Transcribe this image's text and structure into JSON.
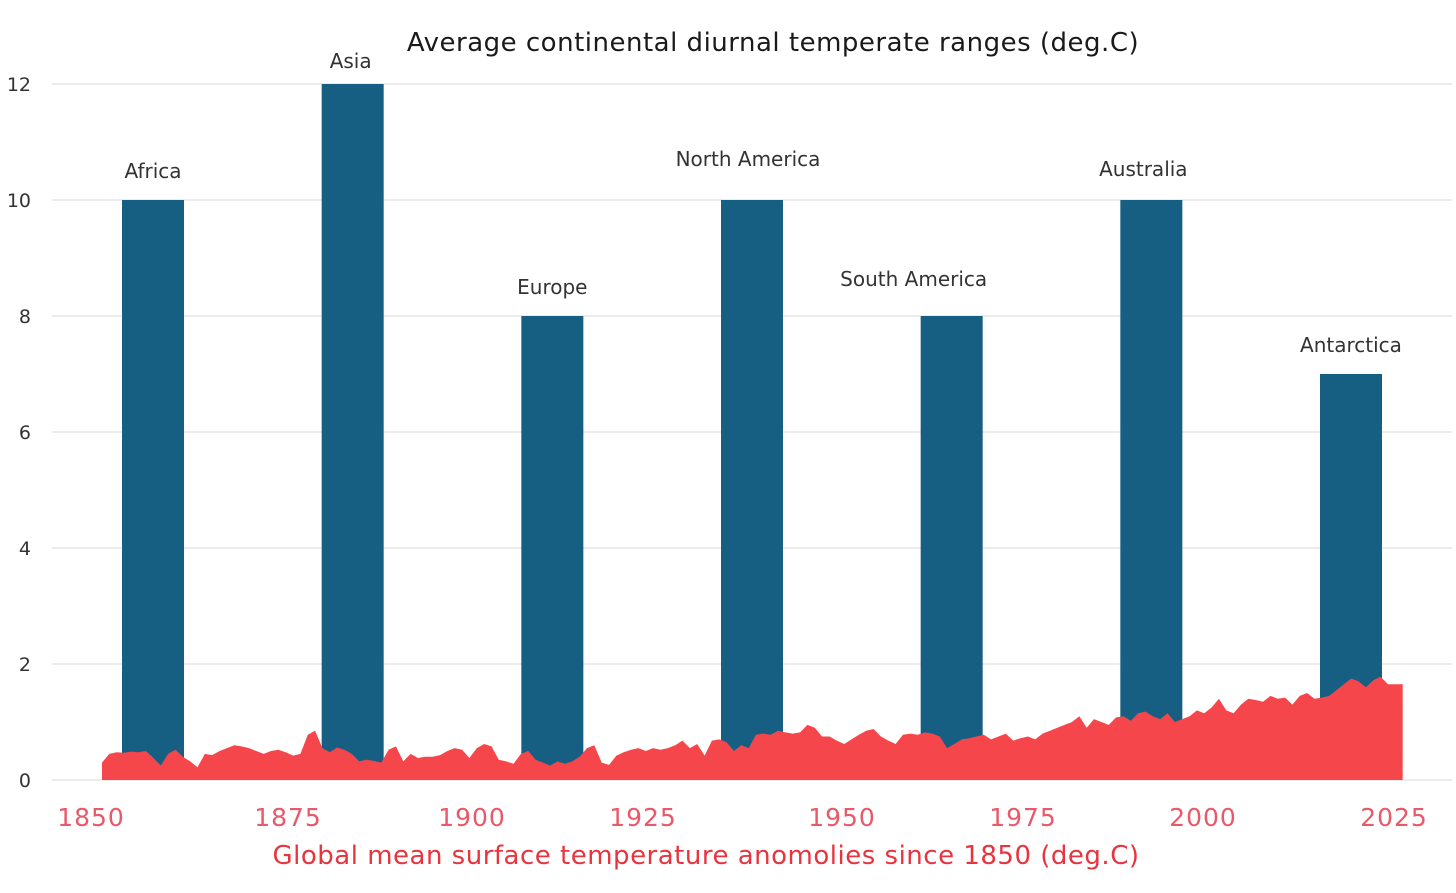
{
  "chart_data": [
    {
      "type": "bar",
      "title": "Average continental diurnal temperate ranges (deg.C)",
      "categories": [
        "Africa",
        "Asia",
        "Europe",
        "North America",
        "South America",
        "Australia",
        "Antarctica"
      ],
      "values": [
        10,
        12,
        8,
        10,
        8,
        10,
        7
      ],
      "ylim": [
        0,
        12
      ],
      "yticks": [
        "0",
        "2",
        "4",
        "6",
        "8",
        "10",
        "12"
      ],
      "ytick_values": [
        0,
        2,
        4,
        6,
        8,
        10,
        12
      ],
      "color": "#175f82",
      "grid": true
    },
    {
      "type": "area",
      "xlabel": "Global mean surface temperature anomolies since 1850 (deg.C)",
      "xlim": [
        1850,
        2028
      ],
      "xticks": [
        "1850",
        "1875",
        "1900",
        "1925",
        "1950",
        "1975",
        "2000",
        "2025"
      ],
      "xtick_values": [
        1850,
        1875,
        1900,
        1925,
        1950,
        1975,
        2000,
        2025
      ],
      "color": "#f5474b",
      "x": [
        1850,
        1851,
        1852,
        1853,
        1854,
        1855,
        1856,
        1857,
        1858,
        1859,
        1860,
        1861,
        1862,
        1863,
        1864,
        1865,
        1866,
        1867,
        1868,
        1869,
        1870,
        1871,
        1872,
        1873,
        1874,
        1875,
        1876,
        1877,
        1878,
        1879,
        1880,
        1881,
        1882,
        1883,
        1884,
        1885,
        1886,
        1887,
        1888,
        1889,
        1890,
        1891,
        1892,
        1893,
        1894,
        1895,
        1896,
        1897,
        1898,
        1899,
        1900,
        1901,
        1902,
        1903,
        1904,
        1905,
        1906,
        1907,
        1908,
        1909,
        1910,
        1911,
        1912,
        1913,
        1914,
        1915,
        1916,
        1917,
        1918,
        1919,
        1920,
        1921,
        1922,
        1923,
        1924,
        1925,
        1926,
        1927,
        1928,
        1929,
        1930,
        1931,
        1932,
        1933,
        1934,
        1935,
        1936,
        1937,
        1938,
        1939,
        1940,
        1941,
        1942,
        1943,
        1944,
        1945,
        1946,
        1947,
        1948,
        1949,
        1950,
        1951,
        1952,
        1953,
        1954,
        1955,
        1956,
        1957,
        1958,
        1959,
        1960,
        1961,
        1962,
        1963,
        1964,
        1965,
        1966,
        1967,
        1968,
        1969,
        1970,
        1971,
        1972,
        1973,
        1974,
        1975,
        1976,
        1977,
        1978,
        1979,
        1980,
        1981,
        1982,
        1983,
        1984,
        1985,
        1986,
        1987,
        1988,
        1989,
        1990,
        1991,
        1992,
        1993,
        1994,
        1995,
        1996,
        1997,
        1998,
        1999,
        2000,
        2001,
        2002,
        2003,
        2004,
        2005,
        2006,
        2007,
        2008,
        2009,
        2010,
        2011,
        2012,
        2013,
        2014,
        2015,
        2016,
        2017,
        2018,
        2019,
        2020,
        2021,
        2022,
        2023,
        2024,
        2025,
        2026,
        2027
      ],
      "values": [
        0.3,
        0.45,
        0.48,
        0.47,
        0.49,
        0.48,
        0.5,
        0.38,
        0.25,
        0.45,
        0.52,
        0.4,
        0.32,
        0.22,
        0.45,
        0.43,
        0.5,
        0.55,
        0.6,
        0.58,
        0.55,
        0.5,
        0.45,
        0.5,
        0.52,
        0.48,
        0.42,
        0.45,
        0.78,
        0.85,
        0.55,
        0.48,
        0.56,
        0.52,
        0.45,
        0.32,
        0.35,
        0.33,
        0.3,
        0.52,
        0.58,
        0.32,
        0.45,
        0.38,
        0.4,
        0.4,
        0.43,
        0.5,
        0.55,
        0.52,
        0.38,
        0.55,
        0.62,
        0.58,
        0.35,
        0.32,
        0.28,
        0.45,
        0.5,
        0.35,
        0.3,
        0.25,
        0.32,
        0.28,
        0.32,
        0.4,
        0.55,
        0.6,
        0.3,
        0.26,
        0.42,
        0.48,
        0.52,
        0.55,
        0.5,
        0.55,
        0.52,
        0.55,
        0.6,
        0.68,
        0.55,
        0.62,
        0.42,
        0.68,
        0.7,
        0.65,
        0.5,
        0.6,
        0.55,
        0.78,
        0.8,
        0.78,
        0.85,
        0.82,
        0.8,
        0.82,
        0.95,
        0.9,
        0.75,
        0.75,
        0.68,
        0.62,
        0.7,
        0.78,
        0.85,
        0.88,
        0.75,
        0.68,
        0.62,
        0.78,
        0.8,
        0.78,
        0.82,
        0.8,
        0.75,
        0.55,
        0.62,
        0.7,
        0.72,
        0.75,
        0.78,
        0.7,
        0.75,
        0.8,
        0.68,
        0.72,
        0.75,
        0.7,
        0.8,
        0.85,
        0.9,
        0.95,
        1.0,
        1.1,
        0.9,
        1.05,
        1.0,
        0.95,
        1.08,
        1.1,
        1.02,
        1.15,
        1.18,
        1.1,
        1.05,
        1.15,
        1.0,
        1.05,
        1.1,
        1.2,
        1.15,
        1.25,
        1.4,
        1.2,
        1.15,
        1.3,
        1.4,
        1.38,
        1.35,
        1.45,
        1.4,
        1.42,
        1.3,
        1.45,
        1.5,
        1.4,
        1.42,
        1.45,
        1.55,
        1.65,
        1.75,
        1.7,
        1.6,
        1.72,
        1.78,
        1.65,
        1.65,
        1.65
      ]
    }
  ]
}
